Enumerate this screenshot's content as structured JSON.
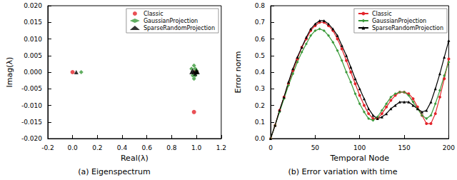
{
  "chart_data": [
    {
      "type": "scatter",
      "title": "(a) Eigenspectrum",
      "xlabel": "Real(λ)",
      "ylabel": "Imag(λ)",
      "xlim": [
        -0.2,
        1.2
      ],
      "xticks": [
        {
          "value": -0.2,
          "label": "-0.2"
        },
        {
          "value": 0.0,
          "label": "0.0"
        },
        {
          "value": 0.2,
          "label": "0.2"
        },
        {
          "value": 0.4,
          "label": "0.4"
        },
        {
          "value": 0.6,
          "label": "0.6"
        },
        {
          "value": 0.8,
          "label": "0.8"
        },
        {
          "value": 1.0,
          "label": "1.0"
        },
        {
          "value": 1.2,
          "label": "1.2"
        }
      ],
      "ylim": [
        -0.02,
        0.02
      ],
      "yticks": [
        {
          "value": -0.02,
          "label": "-0.020"
        },
        {
          "value": -0.015,
          "label": "-0.015"
        },
        {
          "value": -0.01,
          "label": "-0.010"
        },
        {
          "value": -0.005,
          "label": "-0.005"
        },
        {
          "value": 0.0,
          "label": "0.000"
        },
        {
          "value": 0.005,
          "label": "0.005"
        },
        {
          "value": 0.01,
          "label": "0.010"
        },
        {
          "value": 0.015,
          "label": "0.015"
        },
        {
          "value": 0.02,
          "label": "0.020"
        }
      ],
      "grid": false,
      "legend": "upper right",
      "series": [
        {
          "name": "Classic",
          "color": "#e3242b",
          "marker": "circle",
          "x": [
            0.0,
            0.98,
            0.99,
            1.0
          ],
          "values": [
            0.0,
            -0.012,
            0.0,
            0.0
          ]
        },
        {
          "name": "GaussianProjection",
          "color": "#3a9a3a",
          "marker": "diamond",
          "x": [
            0.07,
            0.96,
            0.97,
            0.98,
            0.98,
            0.99,
            0.99,
            1.0,
            1.0
          ],
          "values": [
            0.0,
            0.001,
            -0.001,
            0.002,
            -0.002,
            0.001,
            -0.001,
            0.0005,
            0.0
          ]
        },
        {
          "name": "SparseRandomProjection",
          "color": "#000000",
          "marker": "triangle",
          "x": [
            0.03,
            0.96,
            0.97,
            0.98,
            0.99,
            1.0,
            1.0,
            1.01
          ],
          "values": [
            0.0,
            0.0,
            0.0005,
            0.0,
            -0.0005,
            0.0005,
            0.0,
            0.0
          ]
        }
      ]
    },
    {
      "type": "line",
      "title": "(b) Error variation with time",
      "xlabel": "Temporal Node",
      "ylabel": "Error norm",
      "xlim": [
        0,
        200
      ],
      "xticks": [
        0,
        50,
        100,
        150,
        200
      ],
      "ylim": [
        0,
        0.8
      ],
      "yticks": [
        {
          "value": 0.0,
          "label": "0.0"
        },
        0.1,
        0.2,
        0.3,
        0.4,
        0.5,
        0.6,
        0.7,
        0.8
      ],
      "grid": false,
      "legend": "upper right",
      "x": [
        0,
        5,
        10,
        15,
        20,
        25,
        30,
        35,
        40,
        45,
        50,
        55,
        60,
        65,
        70,
        75,
        80,
        85,
        90,
        95,
        100,
        105,
        110,
        115,
        120,
        125,
        130,
        135,
        140,
        145,
        150,
        155,
        160,
        165,
        170,
        175,
        180,
        185,
        190,
        195,
        200
      ],
      "series": [
        {
          "name": "Classic",
          "color": "#e3242b",
          "marker": "circle",
          "line_style": "solid",
          "values": [
            0.0,
            0.08,
            0.17,
            0.25,
            0.33,
            0.41,
            0.48,
            0.55,
            0.6,
            0.65,
            0.68,
            0.7,
            0.7,
            0.68,
            0.65,
            0.6,
            0.54,
            0.47,
            0.4,
            0.33,
            0.26,
            0.2,
            0.15,
            0.12,
            0.12,
            0.15,
            0.19,
            0.23,
            0.26,
            0.28,
            0.28,
            0.27,
            0.24,
            0.19,
            0.14,
            0.09,
            0.09,
            0.15,
            0.25,
            0.36,
            0.48
          ]
        },
        {
          "name": "GaussianProjection",
          "color": "#3a9a3a",
          "marker": "diamond",
          "line_style": "solid",
          "values": [
            0.0,
            0.08,
            0.16,
            0.24,
            0.32,
            0.39,
            0.46,
            0.52,
            0.57,
            0.62,
            0.65,
            0.66,
            0.65,
            0.62,
            0.58,
            0.53,
            0.47,
            0.4,
            0.34,
            0.27,
            0.21,
            0.16,
            0.12,
            0.11,
            0.13,
            0.17,
            0.21,
            0.25,
            0.27,
            0.28,
            0.28,
            0.26,
            0.22,
            0.18,
            0.14,
            0.12,
            0.14,
            0.21,
            0.29,
            0.38,
            0.46
          ]
        },
        {
          "name": "SparseRandomProjection",
          "color": "#000000",
          "marker": "triangle",
          "line_style": "solid",
          "values": [
            0.0,
            0.08,
            0.17,
            0.25,
            0.34,
            0.42,
            0.49,
            0.55,
            0.61,
            0.66,
            0.69,
            0.71,
            0.71,
            0.69,
            0.66,
            0.62,
            0.56,
            0.5,
            0.43,
            0.36,
            0.3,
            0.24,
            0.18,
            0.14,
            0.12,
            0.13,
            0.15,
            0.18,
            0.2,
            0.22,
            0.22,
            0.22,
            0.2,
            0.18,
            0.16,
            0.17,
            0.22,
            0.3,
            0.39,
            0.49,
            0.59
          ]
        }
      ]
    }
  ]
}
